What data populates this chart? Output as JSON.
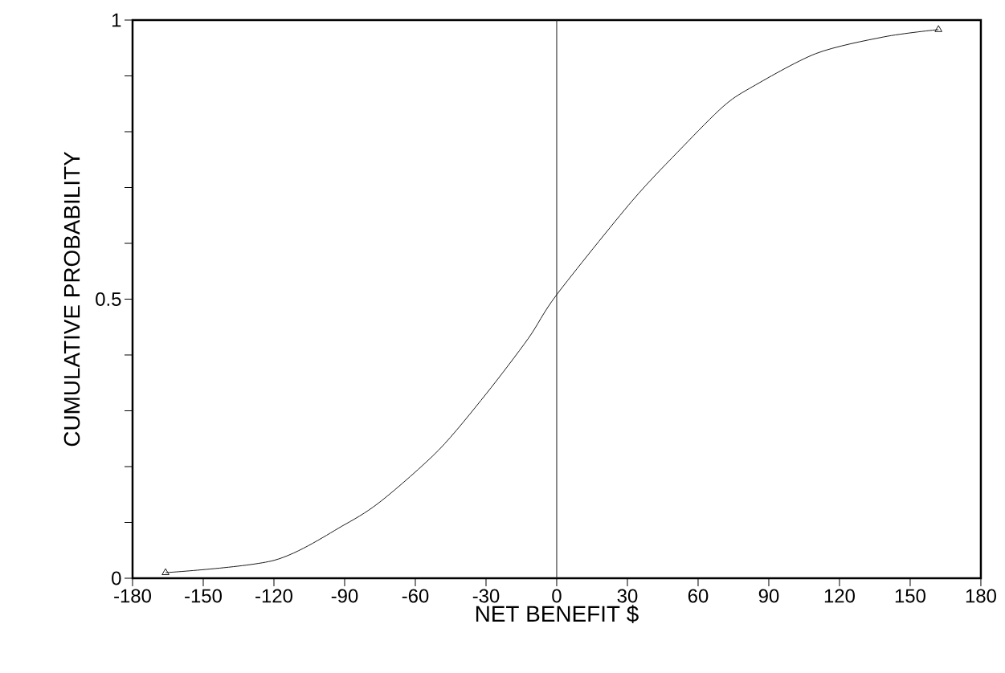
{
  "chart_data": {
    "type": "line",
    "xlabel": "NET BENEFIT $",
    "ylabel": "CUMULATIVE PROBABILITY",
    "series": [
      {
        "color": "#1a1a1a",
        "x": [
          -166,
          -120,
          -90,
          -74,
          -50,
          -30,
          -12,
          0,
          32,
          53.5,
          70.6,
          82,
          110,
          139,
          162
        ],
        "values": [
          0.01,
          0.032,
          0.096,
          0.14,
          0.23,
          0.33,
          0.43,
          0.508,
          0.676,
          0.773,
          0.845,
          0.878,
          0.94,
          0.97,
          0.983
        ],
        "marker": "none"
      },
      {
        "type": "scatter",
        "color": "#1a1a1a",
        "x": [
          -166,
          162
        ],
        "values": [
          0.01,
          0.983
        ],
        "marker": "triangle"
      }
    ],
    "xlim": [
      -180,
      180
    ],
    "ylim": [
      0,
      1
    ],
    "xticks": [
      -180,
      -150,
      -120,
      -90,
      -60,
      -30,
      0,
      30,
      60,
      90,
      120,
      150,
      180
    ],
    "yticks": [
      0,
      {
        "value": 0.1,
        "label": null
      },
      {
        "value": 0.2,
        "label": null
      },
      {
        "value": 0.3,
        "label": null
      },
      {
        "value": 0.4,
        "label": null
      },
      0.5,
      {
        "value": 0.6,
        "label": null
      },
      {
        "value": 0.7,
        "label": null
      },
      {
        "value": 0.8,
        "label": null
      },
      {
        "value": 0.9,
        "label": null
      },
      1
    ],
    "ref_lines": [
      {
        "axis": "x",
        "value": 0,
        "color": "#1a1a1a"
      }
    ],
    "grid": false
  }
}
